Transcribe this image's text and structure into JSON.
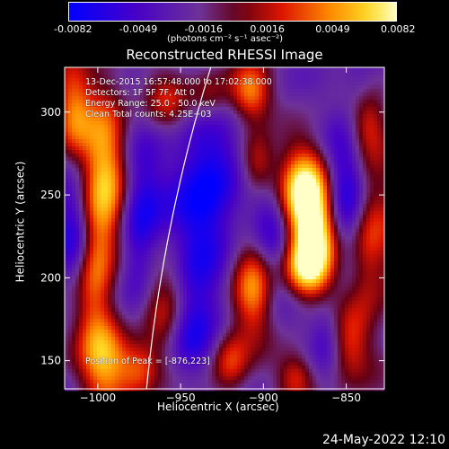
{
  "colorbar": {
    "ticks": [
      "-0.0082",
      "-0.0049",
      "-0.0016",
      "0.0016",
      "0.0049",
      "0.0082"
    ],
    "unit": "(photons cm⁻² s⁻¹ asec⁻²)",
    "range": [
      -0.0082,
      0.0082
    ]
  },
  "chart_data": {
    "type": "heatmap",
    "title": "Reconstructed RHESSI Image",
    "xlabel": "Heliocentric X (arcsec)",
    "ylabel": "Heliocentric Y (arcsec)",
    "xlim": [
      -1020,
      -827
    ],
    "ylim": [
      133,
      327
    ],
    "xticks": [
      -1000,
      -950,
      -900,
      -850
    ],
    "yticks": [
      150,
      200,
      250,
      300
    ],
    "xtick_labels": [
      "−1000",
      "−950",
      "−900",
      "−850"
    ],
    "ytick_labels": [
      "150",
      "200",
      "250",
      "300"
    ],
    "colormap": "blue-purple-red-orange-yellow",
    "peak": [
      -876,
      223
    ],
    "annotations": [
      "13-Dec-2015 16:57:48.000 to 17:02:38.000",
      "Detectors: 1F 5F 7F, Att 0",
      "Energy Range: 25.0 - 50.0 keV",
      "Clean    Total counts: 4.25E+03",
      "Position of Peak = [-876,223]"
    ]
  },
  "timestamp": "24-May-2022 12:10"
}
